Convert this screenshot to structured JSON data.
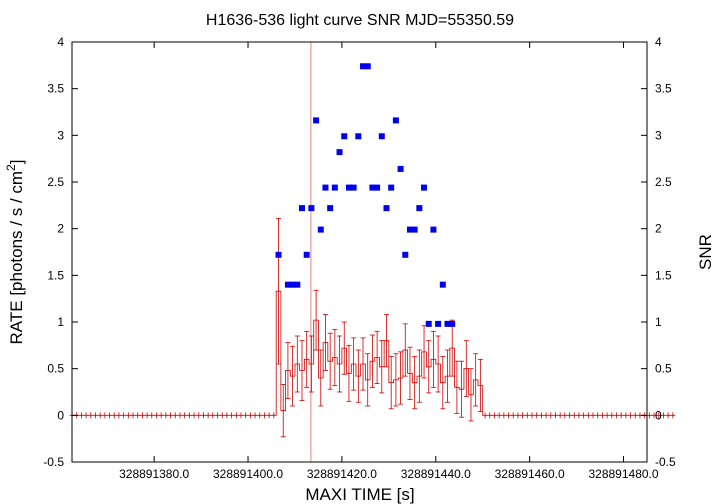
{
  "chart_data": {
    "type": "scatter",
    "title": "H1636-536 light curve  SNR MJD=55350.59",
    "xlabel": "MAXI TIME [s]",
    "ylabel_left": "RATE [photons / s / cm",
    "ylabel_left_sup": "2",
    "ylabel_left_end": "]",
    "ylabel_right": "SNR",
    "xlim": [
      328891362.5,
      328891485.0
    ],
    "ylim": [
      -0.5,
      4.0
    ],
    "y2lim": [
      -0.5,
      4.0
    ],
    "x_ticks": [
      328891380.0,
      328891400.0,
      328891420.0,
      328891440.0,
      328891460.0,
      328891480.0
    ],
    "x_tick_labels": [
      "328891380.0",
      "328891400.0",
      "328891420.0",
      "328891440.0",
      "328891460.0",
      "328891480.0"
    ],
    "y_ticks": [
      -0.5,
      0,
      0.5,
      1,
      1.5,
      2,
      2.5,
      3,
      3.5,
      4
    ],
    "y_tick_labels": [
      "-0.5",
      "0",
      "0.5",
      "1",
      "1.5",
      "2",
      "2.5",
      "3",
      "3.5",
      "4"
    ],
    "y2_tick_labels": [
      "-0.5",
      "0",
      "0.5",
      "1",
      "1.5",
      "2",
      "2.5",
      "3",
      "3.5",
      "4"
    ],
    "grid": false,
    "marker_time": 328891413.4,
    "colors": {
      "rate": "#cc0000",
      "snr": "#0000ee",
      "marker": "#e88080"
    },
    "series": [
      {
        "type": "errorbar",
        "x_start": 328891362.5,
        "x_step": 1,
        "rate": [
          0,
          0,
          0,
          0,
          0,
          0,
          0,
          0,
          0,
          0,
          0,
          0,
          0,
          0,
          0,
          0,
          0,
          0,
          0,
          0,
          0,
          0,
          0,
          0,
          0,
          0,
          0,
          0,
          0,
          0,
          0,
          0,
          0,
          0,
          0,
          0,
          0,
          0,
          0,
          0,
          0,
          0,
          0,
          0,
          1.33,
          0.05,
          0.48,
          0.42,
          0.55,
          0.48,
          0.6,
          0.55,
          1.02,
          0.4,
          0.78,
          0.58,
          0.62,
          0.55,
          0.72,
          0.45,
          0.55,
          0.42,
          0.55,
          0.38,
          0.58,
          0.62,
          0.52,
          0.8,
          0.35,
          0.38,
          0.4,
          0.7,
          0.45,
          0.35,
          0.42,
          0.68,
          0.52,
          0.6,
          0.55,
          0.35,
          0.42,
          0.72,
          0.3,
          0.28,
          0.5,
          0.22,
          0.38,
          0.32,
          0,
          0,
          0,
          0,
          0,
          0,
          0,
          0,
          0,
          0,
          0,
          0,
          0,
          0,
          0,
          0,
          0,
          0,
          0,
          0,
          0,
          0,
          0,
          0,
          0,
          0,
          0,
          0,
          0,
          0,
          0,
          0,
          0,
          0,
          0,
          0,
          0,
          0,
          0,
          0,
          0
        ],
        "err": [
          0,
          0,
          0,
          0,
          0,
          0,
          0,
          0,
          0,
          0,
          0,
          0,
          0,
          0,
          0,
          0,
          0,
          0,
          0,
          0,
          0,
          0,
          0,
          0,
          0,
          0,
          0,
          0,
          0,
          0,
          0,
          0,
          0,
          0,
          0,
          0,
          0,
          0,
          0,
          0,
          0,
          0,
          0,
          0,
          0.78,
          0.28,
          0.3,
          0.32,
          0.3,
          0.32,
          0.3,
          0.3,
          0.32,
          0.3,
          0.3,
          0.3,
          0.3,
          0.3,
          0.28,
          0.3,
          0.28,
          0.28,
          0.28,
          0.28,
          0.28,
          0.28,
          0.28,
          0.28,
          0.28,
          0.28,
          0.28,
          0.28,
          0.28,
          0.28,
          0.28,
          0.28,
          0.28,
          0.3,
          0.3,
          0.28,
          0.28,
          0.3,
          0.28,
          0.3,
          0.3,
          0.28,
          0.28,
          0.28,
          0,
          0,
          0,
          0,
          0,
          0,
          0,
          0,
          0,
          0,
          0,
          0,
          0,
          0,
          0,
          0,
          0,
          0,
          0,
          0,
          0,
          0,
          0,
          0,
          0,
          0,
          0,
          0,
          0,
          0,
          0,
          0,
          0,
          0,
          0,
          0,
          0,
          0,
          0,
          0,
          0
        ]
      },
      {
        "type": "scatter",
        "x": [
          328891406.5,
          328891408.5,
          328891409.5,
          328891410.5,
          328891411.5,
          328891412.5,
          328891413.5,
          328891414.5,
          328891415.5,
          328891416.5,
          328891417.5,
          328891418.5,
          328891419.5,
          328891420.5,
          328891421.5,
          328891422.5,
          328891423.5,
          328891424.5,
          328891425.5,
          328891426.5,
          328891427.5,
          328891428.5,
          328891429.5,
          328891430.5,
          328891431.5,
          328891432.5,
          328891433.5,
          328891434.5,
          328891435.5,
          328891436.5,
          328891437.5,
          328891438.5,
          328891439.5,
          328891440.5,
          328891441.5,
          328891442.5,
          328891443.5
        ],
        "y": [
          1.72,
          1.4,
          1.4,
          1.4,
          2.22,
          1.72,
          2.22,
          3.16,
          1.99,
          2.44,
          2.22,
          2.44,
          2.82,
          2.99,
          2.44,
          2.44,
          2.99,
          3.74,
          3.74,
          2.44,
          2.44,
          2.99,
          2.22,
          2.44,
          3.16,
          2.64,
          1.72,
          1.99,
          1.99,
          2.22,
          2.44,
          0.98,
          1.99,
          0.98,
          1.4,
          0.98,
          0.98
        ]
      }
    ]
  }
}
